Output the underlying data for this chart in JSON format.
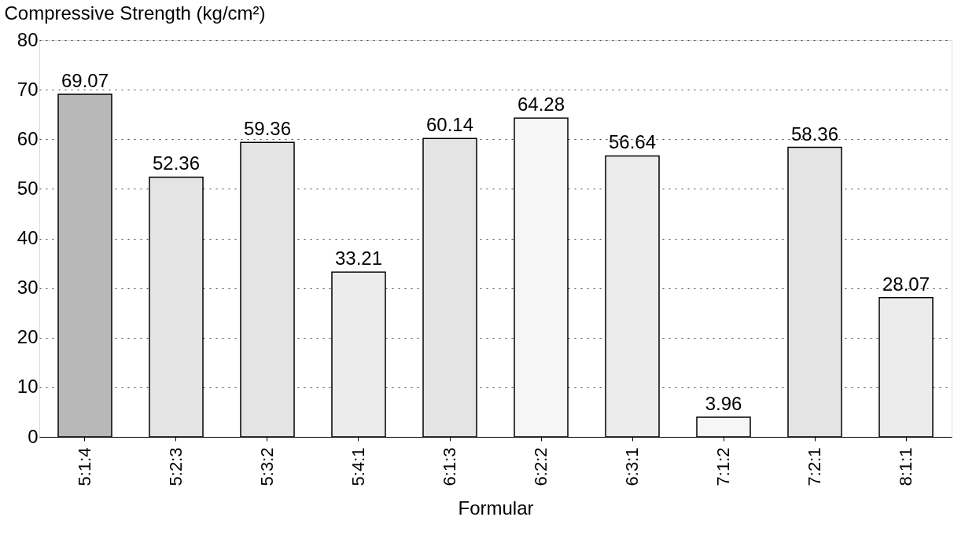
{
  "chart_data": {
    "type": "bar",
    "ylabel": "Compressive Strength (kg/cm²)",
    "xlabel": "Formular",
    "categories": [
      "5:1:4",
      "5:2:3",
      "5:3:2",
      "5:4:1",
      "6:1:3",
      "6:2:2",
      "6:3:1",
      "7:1:2",
      "7:2:1",
      "8:1:1"
    ],
    "values": [
      69.07,
      52.36,
      59.36,
      33.21,
      60.14,
      64.28,
      56.64,
      3.96,
      58.36,
      28.07
    ],
    "colors": [
      "#b8b8b8",
      "#e4e4e4",
      "#e4e4e4",
      "#ececec",
      "#e4e4e4",
      "#f6f6f6",
      "#ececec",
      "#f6f6f6",
      "#e4e4e4",
      "#ececec"
    ],
    "ylim": [
      0,
      80
    ],
    "yticks": [
      0,
      10,
      20,
      30,
      40,
      50,
      60,
      70,
      80
    ],
    "grid": "y",
    "data_labels": true
  }
}
